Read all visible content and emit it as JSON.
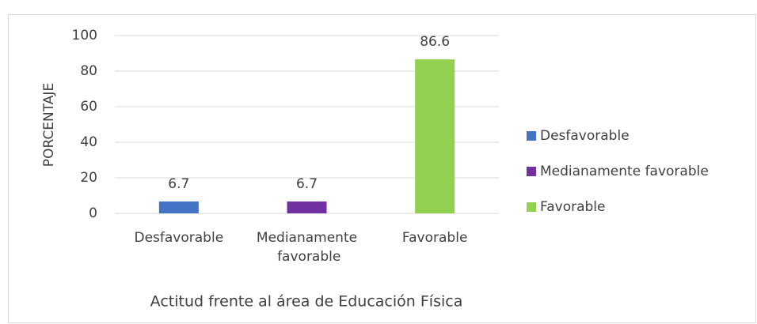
{
  "chart_data": {
    "type": "bar",
    "categories": [
      "Desfavorable",
      "Medianamente favorable",
      "Favorable"
    ],
    "values": [
      6.7,
      6.7,
      86.6
    ],
    "colors": [
      "#4472c4",
      "#7030a0",
      "#92d050"
    ],
    "y_label": "PORCENTAJE",
    "x_label": "Actitud frente al área de Educación Física",
    "ylim": [
      0,
      100
    ],
    "yticks": [
      0,
      20,
      40,
      60,
      80,
      100
    ],
    "grid": true,
    "legend": "right"
  }
}
